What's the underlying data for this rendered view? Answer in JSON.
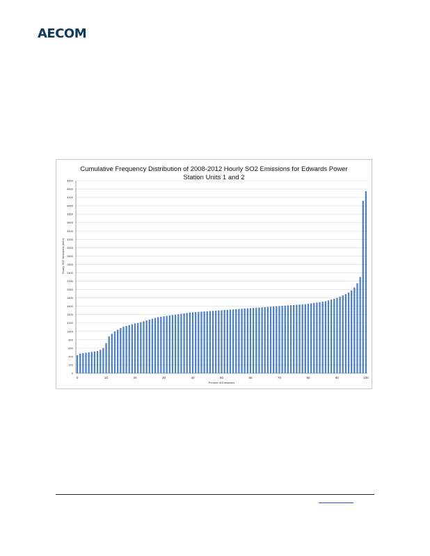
{
  "header": {
    "logo_text": "AECOM",
    "logo_color": "#0b3a5a"
  },
  "chart_data": {
    "type": "bar",
    "title_line1": "Cumulative Frequency Distribution of 2008-2012 Hourly SO2 Emissions for Edwards Power",
    "title_line2": "Station Units 1 and 2",
    "xlabel": "Percent of Emissions",
    "ylabel": "Hourly SO2 Emissions (lb/hr)",
    "xlim": [
      0,
      100
    ],
    "ylim": [
      0,
      4600
    ],
    "x_ticks": [
      0,
      10,
      20,
      30,
      40,
      50,
      60,
      70,
      80,
      90,
      100
    ],
    "y_ticks": [
      0,
      200,
      400,
      600,
      800,
      1000,
      1200,
      1400,
      1600,
      1800,
      2000,
      2200,
      2400,
      2600,
      2800,
      3000,
      3200,
      3400,
      3600,
      3800,
      4000,
      4200,
      4400,
      4600
    ],
    "grid": true,
    "bar_color": "#4f81bd",
    "x": [
      0,
      1,
      2,
      3,
      4,
      5,
      6,
      7,
      8,
      9,
      10,
      11,
      12,
      13,
      14,
      15,
      16,
      17,
      18,
      19,
      20,
      21,
      22,
      23,
      24,
      25,
      26,
      27,
      28,
      29,
      30,
      31,
      32,
      33,
      34,
      35,
      36,
      37,
      38,
      39,
      40,
      41,
      42,
      43,
      44,
      45,
      46,
      47,
      48,
      49,
      50,
      51,
      52,
      53,
      54,
      55,
      56,
      57,
      58,
      59,
      60,
      61,
      62,
      63,
      64,
      65,
      66,
      67,
      68,
      69,
      70,
      71,
      72,
      73,
      74,
      75,
      76,
      77,
      78,
      79,
      80,
      81,
      82,
      83,
      84,
      85,
      86,
      87,
      88,
      89,
      90,
      91,
      92,
      93,
      94,
      95,
      96,
      97,
      98,
      99,
      100
    ],
    "values": [
      430,
      470,
      480,
      490,
      500,
      510,
      520,
      530,
      560,
      600,
      720,
      880,
      940,
      1000,
      1040,
      1080,
      1110,
      1130,
      1150,
      1170,
      1190,
      1200,
      1220,
      1240,
      1260,
      1280,
      1300,
      1320,
      1340,
      1350,
      1360,
      1370,
      1380,
      1390,
      1400,
      1410,
      1420,
      1430,
      1440,
      1450,
      1455,
      1460,
      1465,
      1470,
      1475,
      1480,
      1485,
      1490,
      1495,
      1500,
      1505,
      1510,
      1515,
      1520,
      1525,
      1530,
      1535,
      1540,
      1545,
      1550,
      1555,
      1560,
      1565,
      1570,
      1575,
      1580,
      1585,
      1590,
      1595,
      1600,
      1605,
      1610,
      1615,
      1620,
      1625,
      1630,
      1635,
      1640,
      1645,
      1650,
      1660,
      1670,
      1680,
      1690,
      1700,
      1710,
      1720,
      1740,
      1760,
      1780,
      1800,
      1830,
      1860,
      1890,
      1930,
      1980,
      2050,
      2150,
      2300,
      4120,
      4350
    ]
  }
}
